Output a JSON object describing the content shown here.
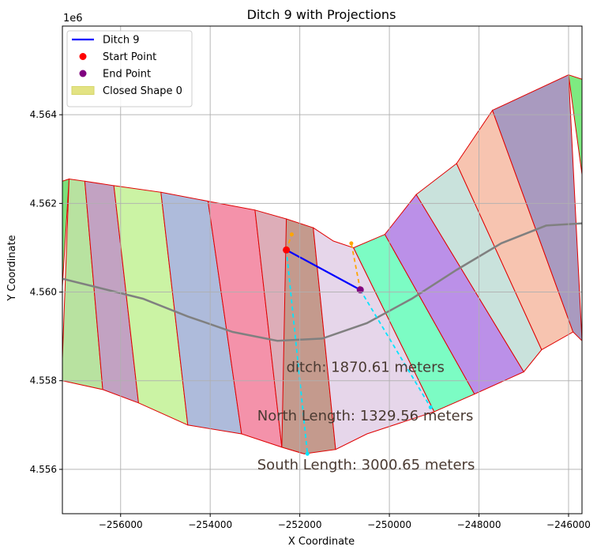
{
  "chart_data": {
    "type": "line",
    "title": "Ditch 9 with Projections",
    "xlabel": "X Coordinate",
    "ylabel": "Y Coordinate",
    "y_offset_label": "1e6",
    "xlim": [
      -257300,
      -245700
    ],
    "ylim": [
      4555000,
      4566000
    ],
    "grid": true,
    "x_ticks": [
      -256000,
      -254000,
      -252000,
      -250000,
      -248000,
      -246000
    ],
    "x_tick_labels": [
      "−256000",
      "−254000",
      "−252000",
      "−250000",
      "−248000",
      "−246000"
    ],
    "y_ticks": [
      4556000,
      4558000,
      4560000,
      4562000,
      4564000
    ],
    "y_tick_labels": [
      "4.556",
      "4.558",
      "4.560",
      "4.562",
      "4.564"
    ],
    "legend": {
      "position": "top-left",
      "entries": [
        {
          "label": "Ditch 9",
          "kind": "line",
          "color": "#0000ff"
        },
        {
          "label": "Start Point",
          "kind": "point",
          "color": "#ff0000"
        },
        {
          "label": "End Point",
          "kind": "point",
          "color": "#800080"
        },
        {
          "label": "Closed Shape 0",
          "kind": "patch",
          "color": "#e3e383"
        }
      ]
    },
    "outline_color": "#e00000",
    "segments": [
      {
        "color": "#7be07b",
        "points": [
          [
            -257300,
            4562500
          ],
          [
            -257150,
            4562550
          ],
          [
            -257400,
            4558500
          ],
          [
            -257300,
            4558000
          ]
        ]
      },
      {
        "color": "#b8e2a0",
        "points": [
          [
            -257150,
            4562550
          ],
          [
            -256800,
            4562500
          ],
          [
            -256400,
            4557800
          ],
          [
            -257300,
            4558000
          ],
          [
            -257300,
            4558500
          ]
        ]
      },
      {
        "color": "#c2a2c2",
        "points": [
          [
            -256800,
            4562500
          ],
          [
            -256150,
            4562400
          ],
          [
            -255600,
            4557500
          ],
          [
            -256400,
            4557800
          ]
        ]
      },
      {
        "color": "#cbf3a4",
        "points": [
          [
            -256150,
            4562400
          ],
          [
            -255100,
            4562250
          ],
          [
            -254500,
            4557000
          ],
          [
            -255600,
            4557500
          ]
        ]
      },
      {
        "color": "#aebbdb",
        "points": [
          [
            -255100,
            4562250
          ],
          [
            -254050,
            4562050
          ],
          [
            -253300,
            4556800
          ],
          [
            -254500,
            4557000
          ]
        ]
      },
      {
        "color": "#f492aa",
        "points": [
          [
            -254050,
            4562050
          ],
          [
            -253000,
            4561850
          ],
          [
            -252400,
            4556500
          ],
          [
            -253300,
            4556800
          ]
        ]
      },
      {
        "color": "#ddadb8",
        "points": [
          [
            -253000,
            4561850
          ],
          [
            -252300,
            4561650
          ],
          [
            -251900,
            4556350
          ],
          [
            -252400,
            4556500
          ]
        ]
      },
      {
        "color": "#c49a8d",
        "points": [
          [
            -252300,
            4561650
          ],
          [
            -251700,
            4561450
          ],
          [
            -251200,
            4556450
          ],
          [
            -251900,
            4556350
          ],
          [
            -252400,
            4556500
          ]
        ]
      },
      {
        "color": "#e6d6ea",
        "points": [
          [
            -251700,
            4561450
          ],
          [
            -251250,
            4561150
          ],
          [
            -250800,
            4561000
          ],
          [
            -249000,
            4557300
          ],
          [
            -250500,
            4556800
          ],
          [
            -251200,
            4556450
          ]
        ]
      },
      {
        "color": "#7cfcc4",
        "points": [
          [
            -250800,
            4561000
          ],
          [
            -250100,
            4561300
          ],
          [
            -248100,
            4557700
          ],
          [
            -249000,
            4557300
          ]
        ]
      },
      {
        "color": "#bb90e8",
        "points": [
          [
            -250100,
            4561300
          ],
          [
            -249400,
            4562200
          ],
          [
            -247000,
            4558200
          ],
          [
            -248100,
            4557700
          ]
        ]
      },
      {
        "color": "#c9e2dc",
        "points": [
          [
            -249400,
            4562200
          ],
          [
            -248500,
            4562900
          ],
          [
            -246600,
            4558700
          ],
          [
            -247000,
            4558200
          ]
        ]
      },
      {
        "color": "#f7c4b0",
        "points": [
          [
            -248500,
            4562900
          ],
          [
            -247700,
            4564100
          ],
          [
            -245900,
            4559100
          ],
          [
            -246600,
            4558700
          ]
        ]
      },
      {
        "color": "#a99abf",
        "points": [
          [
            -247700,
            4564100
          ],
          [
            -246000,
            4564900
          ],
          [
            -245700,
            4558900
          ],
          [
            -245900,
            4559100
          ]
        ]
      },
      {
        "color": "#7eea81",
        "points": [
          [
            -246000,
            4564900
          ],
          [
            -245700,
            4564800
          ],
          [
            -245600,
            4561900
          ]
        ]
      }
    ],
    "centerline": {
      "color": "#808080",
      "x": [
        -257300,
        -256500,
        -255500,
        -254500,
        -253500,
        -252500,
        -251500,
        -250500,
        -249500,
        -248500,
        -247500,
        -246500,
        -245700
      ],
      "y": [
        4560300,
        4560100,
        4559850,
        4559450,
        4559100,
        4558900,
        4558950,
        4559300,
        4559850,
        4560500,
        4561100,
        4561500,
        4561550
      ]
    },
    "ditch": {
      "name": "Ditch 9",
      "color": "#0000ff",
      "start": [
        -252300,
        4560950
      ],
      "end": [
        -250650,
        4560050
      ]
    },
    "projections": [
      {
        "color": "#ffa500",
        "style": "dashed",
        "from": [
          -252300,
          4560950
        ],
        "to": [
          -252180,
          4561300
        ]
      },
      {
        "color": "#ffa500",
        "style": "dashed",
        "from": [
          -250650,
          4560050
        ],
        "to": [
          -250850,
          4561100
        ]
      },
      {
        "color": "#00e5ff",
        "style": "dashed",
        "from": [
          -252300,
          4560950
        ],
        "to": [
          -251830,
          4556350
        ]
      },
      {
        "color": "#00e5ff",
        "style": "dashed",
        "from": [
          -250650,
          4560050
        ],
        "to": [
          -249080,
          4557400
        ]
      }
    ],
    "annotations": [
      {
        "text": "ditch: 1870.61 meters",
        "x": -252300,
        "y": 4558200
      },
      {
        "text": "North Length: 1329.56 meters",
        "x": -252950,
        "y": 4557100
      },
      {
        "text": "South Length: 3000.65 meters",
        "x": -252950,
        "y": 4556000
      }
    ]
  }
}
